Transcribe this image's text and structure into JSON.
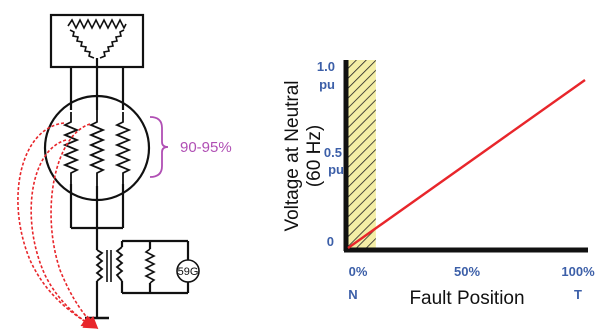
{
  "schematic": {
    "winding_percent_label": "90-95%",
    "relay_label": "59G"
  },
  "chart": {
    "y_axis": {
      "title_line1": "Voltage at Neutral",
      "title_line2": "(60 Hz)",
      "tick_top_value": "1.0",
      "tick_top_unit": "pu",
      "tick_mid_value": "0.5",
      "tick_mid_unit": "pu",
      "tick_zero": "0"
    },
    "x_axis": {
      "title": "Fault Position",
      "tick_start": "0%",
      "tick_mid": "50%",
      "tick_end": "100%",
      "end_left": "N",
      "end_right": "T"
    }
  },
  "chart_data": {
    "type": "line",
    "xlabel": "Fault Position",
    "ylabel": "Voltage at Neutral (60 Hz)",
    "x_ticks": [
      "0%",
      "50%",
      "100%"
    ],
    "y_ticks": [
      "0",
      "0.5 pu",
      "1.0 pu"
    ],
    "xlim": [
      0,
      100
    ],
    "ylim": [
      0,
      1.0
    ],
    "series": [
      {
        "x": [
          0,
          100
        ],
        "y": [
          0,
          1.0
        ],
        "color": "#e8262b"
      }
    ],
    "blind_zone": {
      "x_start": 0,
      "x_end": 5,
      "color": "#f4eea6"
    }
  },
  "colors": {
    "line": "#e8262b",
    "tick_blue": "#3c5fa8",
    "bracket": "#b04fb4",
    "hatch_fill": "#f4eea6"
  }
}
